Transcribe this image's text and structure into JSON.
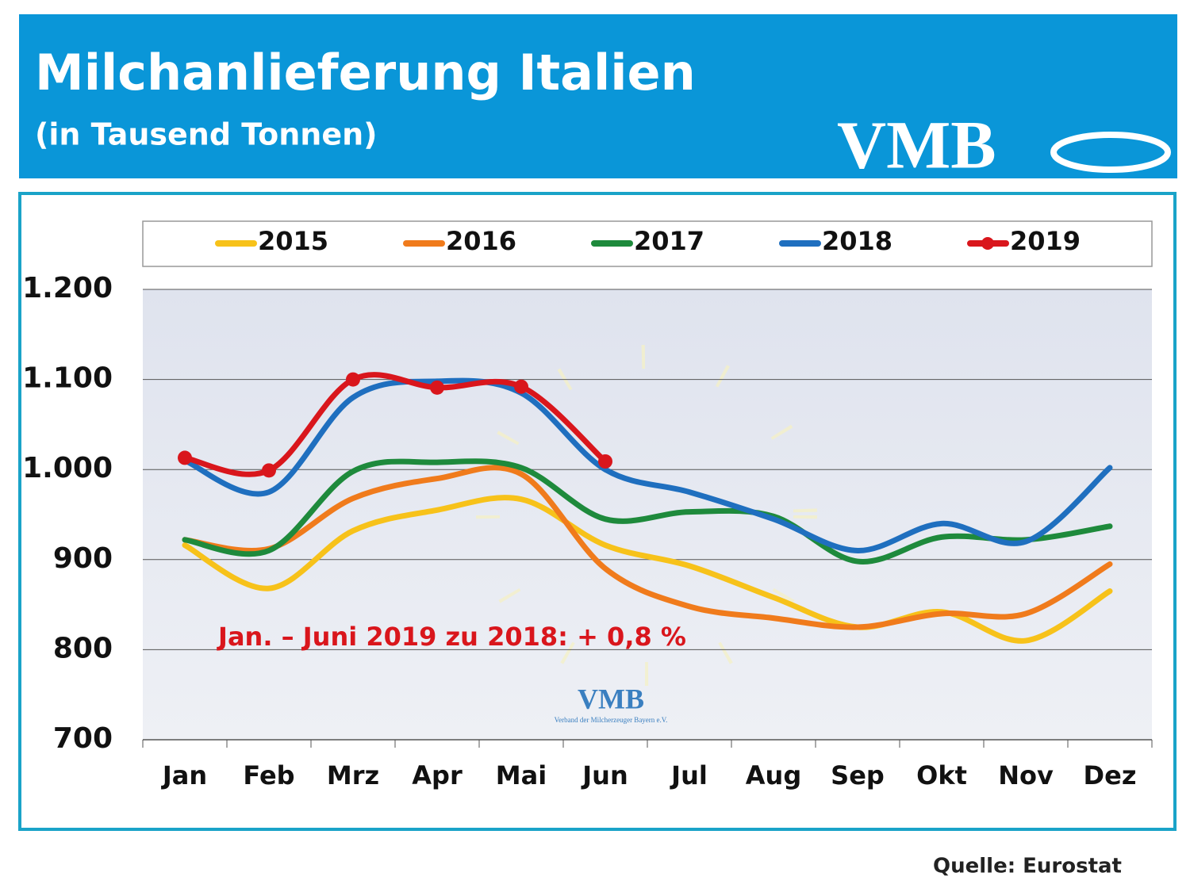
{
  "chart_data": {
    "type": "line",
    "title": "Milchanlieferung Italien",
    "subtitle": "(in Tausend Tonnen)",
    "logo": "VMB",
    "watermark": "VMB",
    "watermark_subtitle": "Verband der Milcherzeuger Bayern e.V.",
    "annotation": "Jan. –  Juni 2019 zu 2018: + 0,8 %",
    "source": "Quelle: Eurostat",
    "categories": [
      "Jan",
      "Feb",
      "Mrz",
      "Apr",
      "Mai",
      "Jun",
      "Jul",
      "Aug",
      "Sep",
      "Okt",
      "Nov",
      "Dez"
    ],
    "series": [
      {
        "name": "2015",
        "color": "#f7c21a",
        "values": [
          916,
          868,
          932,
          955,
          967,
          916,
          893,
          858,
          825,
          842,
          810,
          865
        ]
      },
      {
        "name": "2016",
        "color": "#f07b1c",
        "values": [
          922,
          912,
          968,
          990,
          995,
          890,
          848,
          835,
          825,
          840,
          840,
          895
        ]
      },
      {
        "name": "2017",
        "color": "#1e8a3c",
        "values": [
          922,
          910,
          998,
          1008,
          1002,
          945,
          953,
          948,
          898,
          925,
          922,
          937
        ]
      },
      {
        "name": "2018",
        "color": "#1f6fbf",
        "values": [
          1010,
          975,
          1080,
          1098,
          1085,
          1000,
          975,
          945,
          910,
          940,
          920,
          1002
        ]
      },
      {
        "name": "2019",
        "color": "#d9161c",
        "markers": true,
        "values": [
          1013,
          999,
          1100,
          1091,
          1092,
          1009,
          null,
          null,
          null,
          null,
          null,
          null
        ]
      }
    ],
    "ylim": [
      700,
      1200
    ],
    "yticks": [
      700,
      800,
      900,
      {
        "value": 1000,
        "label": "1.000"
      },
      {
        "value": 1100,
        "label": "1.100"
      },
      {
        "value": 1200,
        "label": "1.200"
      }
    ],
    "grid": true
  }
}
